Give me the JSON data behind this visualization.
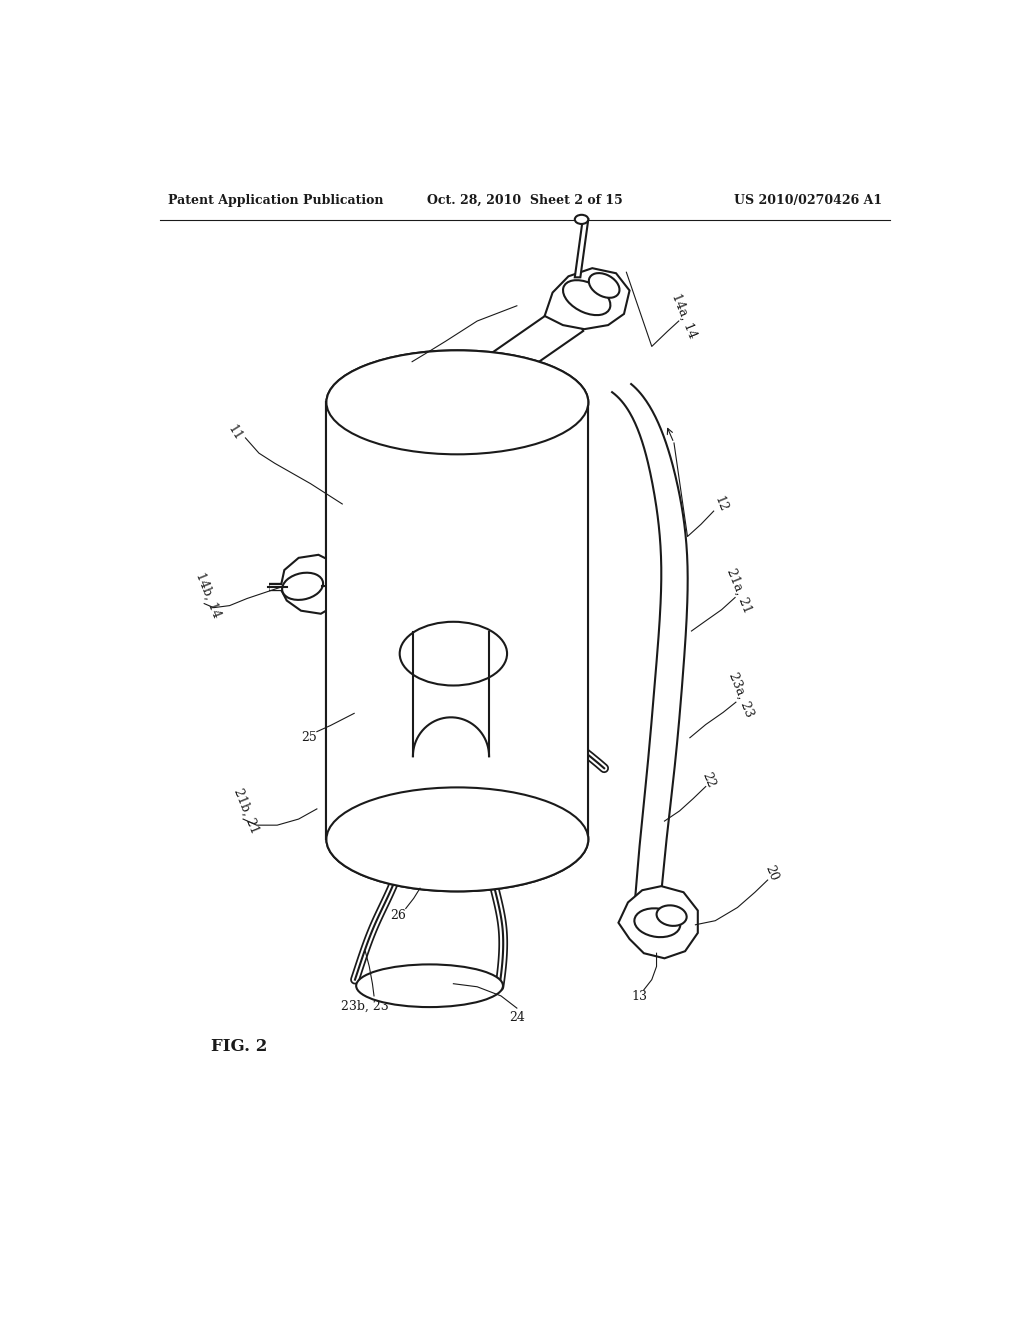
{
  "bg_color": "#ffffff",
  "line_color": "#1a1a1a",
  "header_left": "Patent Application Publication",
  "header_mid": "Oct. 28, 2010  Sheet 2 of 15",
  "header_right": "US 2010/0270426 A1",
  "fig_label": "FIG. 2"
}
